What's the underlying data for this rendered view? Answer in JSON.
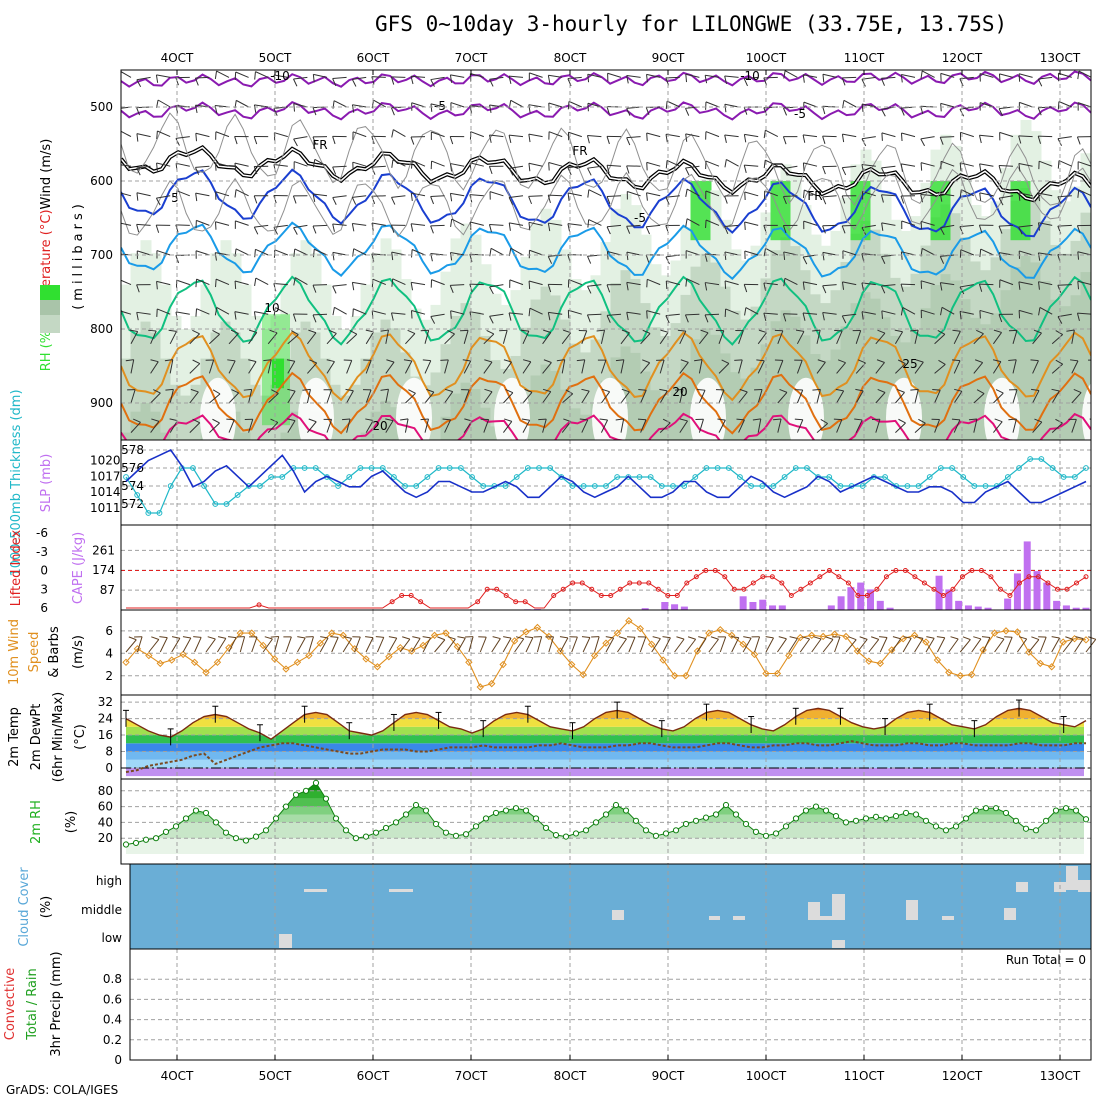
{
  "title": "GFS 0~10day 3-hourly for LILONGWE (33.75E, 13.75S)",
  "credit": "GrADS: COLA/IGES",
  "colors": {
    "frame": "#000000",
    "grid": "#a0a0a0",
    "purple": "#8a1ab0",
    "blue_dark": "#1a3fd0",
    "blue_light": "#1a9be8",
    "teal": "#10c080",
    "orange": "#e09020",
    "magenta": "#e0107a",
    "rh_light": "#e3f1e3",
    "rh_mid": "#c4d8c4",
    "rh_dark": "#a9c4a9",
    "rh_bright": "#30e030",
    "thickness": "#20b8c8",
    "slp": "#1830c8",
    "lifted": "#e02020",
    "cape": "#c070f0",
    "wind10": "#e09020",
    "barb": "#604020",
    "cloud_bg": "#6aaed6",
    "cloud_patch": "#dcdcdc",
    "rh2m": "#20b020"
  },
  "chart_data": [
    {
      "id": "upper-air",
      "type": "heatmap",
      "ylabel_parts": [
        "RH (%)",
        "Temperature (°C)",
        "Wind (m/s)"
      ],
      "ylabel2": "(millibars)",
      "yticks": [
        500,
        600,
        700,
        800,
        900
      ],
      "ylim": [
        450,
        950
      ],
      "temperature_contour_labels": [
        "-10",
        "-10",
        "-5",
        "-5",
        "FR",
        "FR",
        "FR",
        "5",
        "-5",
        "10",
        "25",
        "20",
        "20"
      ]
    },
    {
      "id": "thickness-slp",
      "type": "line",
      "ylabel_left": "1000-500mb Thickness (dm)",
      "ylabel_right": "SLP (mb)",
      "yticks_left": [
        578,
        576,
        574,
        572
      ],
      "yticks_right": [
        1020,
        1017,
        1014,
        1011
      ],
      "series": [
        {
          "name": "1000-500mb Thickness (dm)",
          "values": [
            575,
            573,
            571,
            571,
            574,
            576,
            576,
            574,
            572,
            572,
            573,
            574,
            574,
            575,
            575,
            576,
            576,
            576,
            575,
            574,
            575,
            576,
            576,
            576,
            575,
            574,
            574,
            575,
            576,
            576,
            576,
            575,
            574,
            574,
            574,
            575,
            576,
            576,
            576,
            575,
            574,
            574,
            574,
            574,
            575,
            575,
            575,
            575,
            574,
            574,
            574,
            575,
            576,
            576,
            576,
            575,
            574,
            574,
            574,
            575,
            576,
            576,
            575,
            575,
            574,
            574,
            574,
            575,
            575,
            574,
            574,
            574,
            575,
            576,
            576,
            575,
            574,
            574,
            574,
            575,
            576,
            577,
            577,
            576,
            575,
            575,
            576
          ]
        },
        {
          "name": "SLP (mb)",
          "values": [
            1016,
            1018,
            1020,
            1021,
            1022,
            1019,
            1015,
            1016,
            1018,
            1019,
            1017,
            1015,
            1017,
            1019,
            1021,
            1018,
            1014,
            1016,
            1017,
            1016,
            1015,
            1015,
            1017,
            1018,
            1016,
            1014,
            1013,
            1014,
            1016,
            1016,
            1015,
            1014,
            1014,
            1015,
            1016,
            1015,
            1013,
            1013,
            1015,
            1017,
            1016,
            1014,
            1013,
            1014,
            1015,
            1017,
            1015,
            1013,
            1013,
            1014,
            1016,
            1016,
            1014,
            1013,
            1013,
            1015,
            1017,
            1016,
            1014,
            1013,
            1014,
            1015,
            1017,
            1016,
            1014,
            1015,
            1016,
            1017,
            1016,
            1015,
            1014,
            1014,
            1015,
            1015,
            1014,
            1012,
            1012,
            1014,
            1015,
            1016,
            1014,
            1012,
            1012,
            1013,
            1014,
            1015,
            1016
          ]
        }
      ]
    },
    {
      "id": "lifted-cape",
      "type": "bar",
      "ylabel_left": "Lifted Index",
      "ylabel_right": "CAPE (J/kg)",
      "yticks_left": [
        "-6",
        "-3",
        "0",
        "3",
        "6"
      ],
      "yticks_right": [
        "261",
        "174",
        "87"
      ],
      "series": [
        {
          "name": "CAPE (J/kg)",
          "values": [
            0,
            0,
            0,
            0,
            0,
            0,
            0,
            0,
            0,
            0,
            0,
            0,
            0,
            0,
            0,
            0,
            0,
            0,
            0,
            0,
            0,
            0,
            0,
            0,
            0,
            0,
            0,
            0,
            0,
            0,
            0,
            0,
            0,
            0,
            0,
            0,
            0,
            0,
            0,
            0,
            2,
            3,
            4,
            0,
            0,
            0,
            0,
            0,
            0,
            1,
            2,
            0,
            0,
            8,
            0,
            35,
            25,
            15,
            0,
            0,
            0,
            0,
            0,
            60,
            35,
            45,
            20,
            20,
            0,
            0,
            0,
            0,
            20,
            60,
            100,
            120,
            90,
            40,
            10,
            0,
            0,
            0,
            0,
            150,
            90,
            40,
            20,
            15,
            10,
            0,
            50,
            160,
            300,
            170,
            120,
            40,
            20,
            10,
            10
          ]
        },
        {
          "name": "Lifted Index",
          "values": [
            6,
            6,
            6,
            6,
            6,
            6,
            6,
            6,
            6,
            6,
            6,
            6,
            6,
            6,
            5.5,
            6,
            6,
            6,
            6,
            6,
            6,
            6,
            6,
            6,
            6,
            6,
            6,
            6,
            5,
            4,
            4,
            5,
            6,
            6,
            6,
            6,
            6,
            5,
            3,
            3,
            4,
            5,
            5,
            6,
            6,
            4,
            3,
            2,
            2,
            3,
            4,
            4,
            3,
            2,
            2,
            2,
            3,
            4,
            4,
            2,
            1,
            0,
            0,
            1,
            3,
            3,
            2,
            1,
            1,
            2,
            4,
            3,
            2,
            1,
            0,
            1,
            2,
            4,
            4,
            3,
            1,
            0,
            0,
            1,
            2,
            3,
            4,
            3,
            1,
            0,
            0,
            1,
            3,
            4,
            2,
            1,
            1,
            2,
            3,
            3,
            2,
            1
          ]
        }
      ]
    },
    {
      "id": "wind10m",
      "type": "line",
      "ylabel": "10m Wind Speed (m/s) & Barbs",
      "yticks": [
        2,
        4,
        6
      ],
      "series": [
        {
          "name": "10m Wind Speed",
          "values": [
            3.2,
            4.4,
            3.8,
            3.1,
            3.4,
            3.9,
            3.2,
            2.3,
            3.2,
            4.5,
            5.8,
            5.8,
            4.7,
            3.5,
            2.6,
            3.2,
            3.8,
            4.9,
            5.8,
            5.6,
            4.4,
            3.5,
            2.8,
            3.7,
            4.5,
            4.2,
            4.7,
            5.6,
            5.8,
            4.6,
            3.2,
            1.0,
            1.3,
            3.0,
            5.1,
            5.9,
            6.3,
            5.5,
            4.2,
            3.0,
            2.1,
            3.8,
            4.9,
            5.8,
            6.9,
            6.2,
            4.8,
            3.4,
            2.0,
            2.0,
            4.2,
            5.8,
            6.1,
            5.6,
            4.8,
            3.9,
            2.2,
            2.2,
            3.8,
            5.4,
            5.6,
            5.5,
            5.7,
            5.5,
            4.2,
            3.3,
            3.1,
            4.3,
            5.3,
            5.6,
            5.0,
            3.4,
            2.3,
            2.0,
            2.1,
            4.3,
            5.8,
            6.0,
            5.9,
            4.1,
            3.1,
            2.8,
            5.0,
            5.3,
            5.2
          ]
        }
      ]
    },
    {
      "id": "temp2m",
      "type": "area",
      "ylabel": "2m Temp 2m DewPt (6hr Min/Max) (°C)",
      "yticks": [
        32,
        24,
        16,
        8,
        0
      ],
      "series": [
        {
          "name": "2m Temp",
          "values": [
            24,
            21,
            18,
            16,
            15,
            18,
            22,
            25,
            26,
            25,
            22,
            19,
            17,
            14,
            18,
            22,
            26,
            27,
            26,
            22,
            18,
            17,
            16,
            18,
            22,
            26,
            27,
            26,
            23,
            20,
            19,
            17,
            19,
            23,
            26,
            27,
            26,
            23,
            20,
            19,
            18,
            20,
            24,
            27,
            28,
            27,
            24,
            21,
            19,
            18,
            20,
            24,
            27,
            28,
            27,
            24,
            21,
            19,
            18,
            21,
            25,
            28,
            29,
            28,
            25,
            22,
            20,
            19,
            20,
            24,
            27,
            28,
            27,
            24,
            21,
            20,
            19,
            21,
            25,
            28,
            29,
            28,
            25,
            22,
            21,
            20,
            23
          ]
        },
        {
          "name": "2m DewPt",
          "values": [
            -2,
            -1,
            1,
            2,
            3,
            4,
            6,
            7,
            2,
            4,
            6,
            8,
            10,
            11,
            12,
            12,
            11,
            10,
            9,
            8,
            7,
            7,
            8,
            9,
            9,
            9,
            8,
            8,
            9,
            10,
            10,
            10,
            11,
            10,
            10,
            10,
            10,
            11,
            11,
            12,
            11,
            10,
            10,
            10,
            11,
            11,
            12,
            12,
            11,
            10,
            10,
            10,
            11,
            12,
            12,
            11,
            10,
            10,
            11,
            11,
            12,
            12,
            11,
            11,
            12,
            13,
            12,
            11,
            11,
            11,
            12,
            12,
            11,
            11,
            12,
            12,
            11,
            11,
            11,
            11,
            12,
            12,
            11,
            11,
            11,
            12,
            12
          ]
        }
      ]
    },
    {
      "id": "rh2m",
      "type": "area",
      "ylabel": "2m RH (%)",
      "yticks": [
        80,
        60,
        40,
        20
      ],
      "series": [
        {
          "name": "2m RH",
          "values": [
            12,
            14,
            18,
            20,
            28,
            35,
            45,
            55,
            52,
            40,
            27,
            20,
            17,
            22,
            30,
            45,
            60,
            75,
            80,
            90,
            70,
            45,
            30,
            20,
            22,
            27,
            33,
            40,
            50,
            62,
            55,
            38,
            27,
            23,
            25,
            35,
            45,
            52,
            55,
            58,
            55,
            45,
            33,
            24,
            22,
            26,
            30,
            40,
            50,
            62,
            55,
            42,
            30,
            23,
            26,
            30,
            38,
            42,
            46,
            50,
            62,
            50,
            38,
            28,
            23,
            26,
            35,
            45,
            55,
            60,
            55,
            48,
            40,
            42,
            45,
            47,
            45,
            48,
            52,
            50,
            42,
            35,
            30,
            35,
            45,
            55,
            58,
            58,
            52,
            42,
            32,
            30,
            42,
            55,
            58,
            55,
            44
          ]
        }
      ]
    },
    {
      "id": "cloud",
      "type": "heatmap",
      "ylabel": "Cloud Cover (%)",
      "yticks": [
        "high",
        "middle",
        "low"
      ]
    },
    {
      "id": "precip",
      "type": "bar",
      "ylabel": "3hr Precip (mm) Total / Rain Convective",
      "yticks": [
        0.8,
        0.6,
        0.4,
        0.2,
        0
      ],
      "ylim": [
        0,
        1
      ],
      "annotation": "Run Total = 0",
      "series": [
        {
          "name": "3hr Precip",
          "values": []
        }
      ]
    }
  ],
  "x_axis": {
    "top_ticks": [
      "4OCT",
      "5OCT",
      "6OCT",
      "7OCT",
      "8OCT",
      "9OCT",
      "10OCT",
      "11OCT",
      "12OCT",
      "13OCT"
    ],
    "bottom_ticks": [
      "4OCT",
      "5OCT",
      "6OCT",
      "7OCT",
      "8OCT",
      "9OCT",
      "10OCT",
      "11OCT",
      "12OCT",
      "13OCT"
    ]
  }
}
